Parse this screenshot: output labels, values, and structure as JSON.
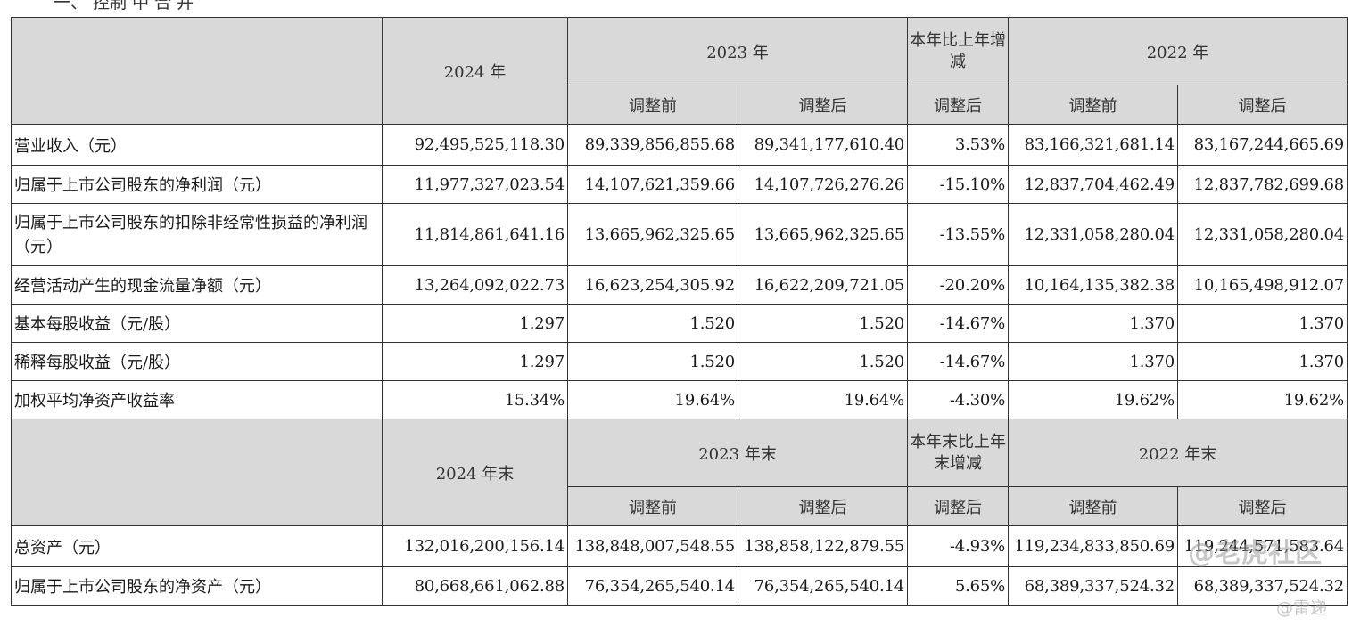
{
  "top_fragment": "一、 控制 中 合 并",
  "header1": {
    "y2024": "2024 年",
    "y2023": "2023 年",
    "change": "本年比上年增减",
    "y2022": "2022 年",
    "before": "调整前",
    "after": "调整后",
    "change_sub": "调整后",
    "before_2022": "调整前",
    "after_2022": "调整后"
  },
  "header2": {
    "y2024": "2024 年末",
    "y2023": "2023 年末",
    "change": "本年末比上年末增减",
    "y2022": "2022 年末",
    "before": "调整前",
    "after": "调整后",
    "change_sub": "调整后",
    "before_2022": "调整前",
    "after_2022": "调整后"
  },
  "rows1": [
    {
      "label": "营业收入（元）",
      "values": [
        "92,495,525,118.30",
        "89,339,856,855.68",
        "89,341,177,610.40",
        "3.53%",
        "83,166,321,681.14",
        "83,167,244,665.69"
      ]
    },
    {
      "label": "归属于上市公司股东的净利润（元）",
      "values": [
        "11,977,327,023.54",
        "14,107,621,359.66",
        "14,107,726,276.26",
        "-15.10%",
        "12,837,704,462.49",
        "12,837,782,699.68"
      ]
    },
    {
      "label": "归属于上市公司股东的扣除非经常性损益的净利润（元）",
      "values": [
        "11,814,861,641.16",
        "13,665,962,325.65",
        "13,665,962,325.65",
        "-13.55%",
        "12,331,058,280.04",
        "12,331,058,280.04"
      ]
    },
    {
      "label": "经营活动产生的现金流量净额（元）",
      "values": [
        "13,264,092,022.73",
        "16,623,254,305.92",
        "16,622,209,721.05",
        "-20.20%",
        "10,164,135,382.38",
        "10,165,498,912.07"
      ]
    },
    {
      "label": "基本每股收益（元/股）",
      "values": [
        "1.297",
        "1.520",
        "1.520",
        "-14.67%",
        "1.370",
        "1.370"
      ]
    },
    {
      "label": "稀释每股收益（元/股）",
      "values": [
        "1.297",
        "1.520",
        "1.520",
        "-14.67%",
        "1.370",
        "1.370"
      ]
    },
    {
      "label": "加权平均净资产收益率",
      "values": [
        "15.34%",
        "19.64%",
        "19.64%",
        "-4.30%",
        "19.62%",
        "19.62%"
      ]
    }
  ],
  "rows2": [
    {
      "label": "总资产（元）",
      "values": [
        "132,016,200,156.14",
        "138,848,007,548.55",
        "138,858,122,879.55",
        "-4.93%",
        "119,234,833,850.69",
        "119,244,571,583.64"
      ]
    },
    {
      "label": "归属于上市公司股东的净资产（元）",
      "values": [
        "80,668,661,062.88",
        "76,354,265,540.14",
        "76,354,265,540.14",
        "5.65%",
        "68,389,337,524.32",
        "68,389,337,524.32"
      ]
    }
  ],
  "watermark": {
    "brand": "@老虎社区",
    "user": "@雷递"
  }
}
